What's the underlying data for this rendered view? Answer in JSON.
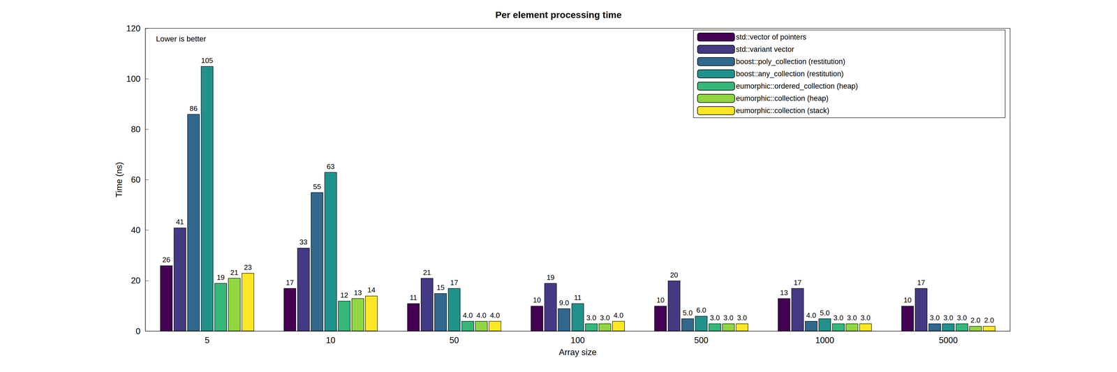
{
  "chart_data": {
    "type": "bar",
    "title": "Per element processing time",
    "xlabel": "Array size",
    "ylabel": "Time (ns)",
    "annotations": [
      "Lower is better"
    ],
    "categories": [
      "5",
      "10",
      "50",
      "100",
      "500",
      "1000",
      "5000"
    ],
    "ylim": [
      0,
      120
    ],
    "yticks": [
      0,
      20,
      40,
      60,
      80,
      100,
      120
    ],
    "grid": false,
    "legend": "upper right",
    "data_labels": true,
    "series": [
      {
        "name": "std::vector of pointers",
        "color": "#440154",
        "values": [
          26,
          17,
          11,
          10,
          10,
          13,
          10
        ]
      },
      {
        "name": "std::variant vector",
        "color": "#443983",
        "values": [
          41,
          33,
          21,
          19,
          20,
          17,
          17
        ]
      },
      {
        "name": "boost::poly_collection (restitution)",
        "color": "#31688e",
        "values": [
          86,
          55,
          15,
          9,
          5,
          4,
          3
        ],
        "value_labels": [
          "86",
          "55",
          "15",
          "9.0",
          "5.0",
          "4.0",
          "3.0"
        ]
      },
      {
        "name": "boost::any_collection (restitution)",
        "color": "#21918c",
        "values": [
          105,
          63,
          17,
          11,
          6,
          5,
          3
        ],
        "value_labels": [
          "105",
          "63",
          "17",
          "11",
          "6.0",
          "5.0",
          "3.0"
        ]
      },
      {
        "name": "eumorphic::ordered_collection (heap)",
        "color": "#35b779",
        "values": [
          19,
          12,
          4,
          3,
          3,
          3,
          3
        ],
        "value_labels": [
          "19",
          "12",
          "4.0",
          "3.0",
          "3.0",
          "3.0",
          "3.0"
        ]
      },
      {
        "name": "eumorphic::collection (heap)",
        "color": "#90d743",
        "values": [
          21,
          13,
          4,
          3,
          3,
          3,
          2
        ],
        "value_labels": [
          "21",
          "13",
          "4.0",
          "3.0",
          "3.0",
          "3.0",
          "2.0"
        ]
      },
      {
        "name": "eumorphic::collection (stack)",
        "color": "#fde725",
        "values": [
          23,
          14,
          4,
          4,
          3,
          3,
          2
        ],
        "value_labels": [
          "23",
          "14",
          "4.0",
          "4.0",
          "3.0",
          "3.0",
          "2.0"
        ]
      }
    ]
  }
}
